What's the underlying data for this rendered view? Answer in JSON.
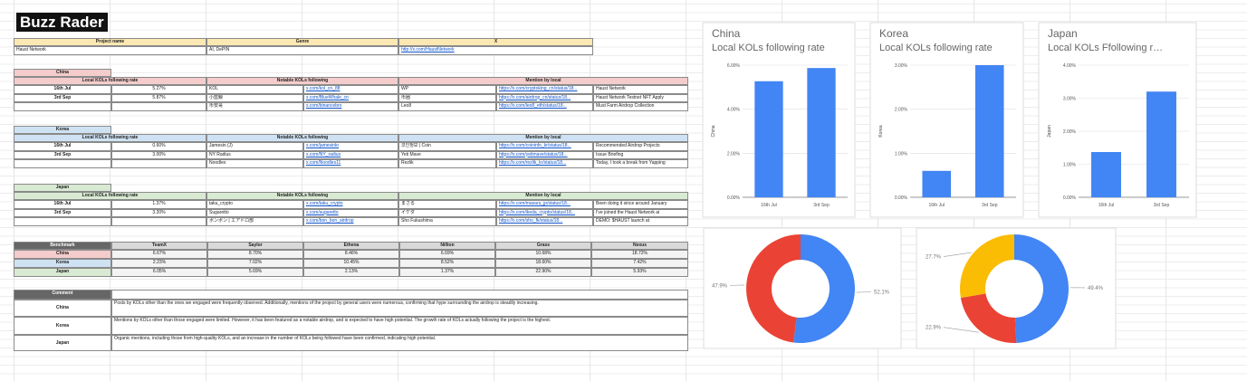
{
  "title": "Buzz Rader",
  "project": {
    "header": [
      "Project name",
      "Genre",
      "X"
    ],
    "rows": [
      [
        "Haust Network",
        "AI, DePIN",
        "http://x.com/HaustNetwork"
      ]
    ]
  },
  "regions": [
    {
      "name": "China",
      "color": "#f4cccc",
      "header": [
        "Local KOLs following rate",
        "Notable KOLs following",
        "Mention by local"
      ],
      "rows": [
        [
          "16th Jul",
          "5.27%",
          "KOL",
          "x.com/kol_cn_88",
          "WP",
          "https://x.com/cryptoking_cn/status/18...",
          "Haust Network"
        ],
        [
          "3rd Sep",
          "5.87%",
          "小蓝鲸",
          "x.com/BlueWhale_cn",
          "币圈",
          "https://x.com/airdrop_cn/status/18...",
          "Haust Network Testnet NFT Apply"
        ],
        [
          null,
          null,
          "币安哥",
          "x.com/binancebro",
          "Leo8",
          "https://x.com/leo8_eth/status/18...",
          "Must Farm Airdrop Collection"
        ]
      ]
    },
    {
      "name": "Korea",
      "color": "#cfe2f3",
      "header": [
        "Local KOLs following rate",
        "Notable KOLs following",
        "Mention by local"
      ],
      "rows": [
        [
          "16th Jul",
          "0.60%",
          "Jamesin (J)",
          "x.com/jamesinkr",
          "코인정보 | Coin",
          "https://x.com/coininfo_kr/status/18...",
          "Recommended Airdrop Projects"
        ],
        [
          "3rd Sep",
          "3.00%",
          "NY Radius",
          "x.com/NY_radius",
          "Yeti Mave",
          "https://x.com/yetimave/status/18...",
          "Issue Briefing"
        ],
        [
          null,
          null,
          "Noodles",
          "x.com/Noodles11",
          "Rezlik",
          "https://x.com/rezlik_kr/status/18...",
          "Today, I took a break from Yapping"
        ]
      ]
    },
    {
      "name": "Japan",
      "color": "#d9ead3",
      "header": [
        "Local KOLs following rate",
        "Notable KOLs following",
        "Mention by local"
      ],
      "rows": [
        [
          "16th Jul",
          "1.37%",
          "taku_crypto",
          "x.com/taku_crypto",
          "まさる",
          "https://x.com/masaru_jp/status/18...",
          "Been doing it since around January"
        ],
        [
          "3rd Sep",
          "3.20%",
          "Sugaretto",
          "x.com/sugaretto",
          "イケダ",
          "https://x.com/ikeda_crypto/status/18...",
          "I've joined the Haust Network ai"
        ],
        [
          null,
          null,
          "ボンボン | エアドロ部",
          "x.com/bon_bon_airdrop",
          "Sho Fukushima",
          "https://x.com/sho_fk/status/18...",
          "DEMO: $HAUST launch at"
        ]
      ]
    }
  ],
  "benchmark": {
    "header": [
      "Benchmark",
      "TeamX",
      "Saylor",
      "Ethena",
      "Nillion",
      "Grass",
      "Nexus"
    ],
    "rows": [
      [
        "China",
        "6.67%",
        "8.70%",
        "8.46%",
        "6.69%",
        "10.68%",
        "18.72%"
      ],
      [
        "Korea",
        "2.23%",
        "7.02%",
        "10.45%",
        "8.52%",
        "18.60%",
        "7.42%"
      ],
      [
        "Japan",
        "6.05%",
        "5.69%",
        "2.13%",
        "1.37%",
        "22.90%",
        "5.93%"
      ]
    ]
  },
  "comment": {
    "header": "Comment",
    "rows": [
      [
        "China",
        "Posts by KOLs other than the ones we engaged were frequently observed. Additionally, mentions of the project by general users were numerous, confirming that hype surrounding the airdrop is steadily increasing."
      ],
      [
        "Korea",
        "Mentions by KOLs other than those engaged were limited. However, it has been featured as a notable airdrop, and is expected to have high potential. The growth rate of KOLs actually following the project is the highest."
      ],
      [
        "Japan",
        "Organic mentions, including those from high-quality KOLs, and an increase in the number of KOLs being followed have been confirmed, indicating high potential."
      ]
    ]
  },
  "chart_data": [
    {
      "type": "bar",
      "title": "China",
      "subtitle": "Local KOLs following rate",
      "y_label": "China",
      "categories": [
        "16th Jul",
        "3rd Sep"
      ],
      "values": [
        5.27,
        5.87
      ],
      "color": "#4285f4",
      "ylim": [
        0,
        6
      ],
      "yticks": [
        {
          "value": 0,
          "label": "0.00%"
        },
        {
          "value": 2,
          "label": "2.00%"
        },
        {
          "value": 4,
          "label": "4.00%"
        },
        {
          "value": 6,
          "label": "6.00%"
        }
      ],
      "grid": true
    },
    {
      "type": "bar",
      "title": "Korea",
      "subtitle": "Local KOLs following rate",
      "y_label": "Korea",
      "categories": [
        "16th Jul",
        "3rd Sep"
      ],
      "values": [
        0.6,
        3.0
      ],
      "color": "#4285f4",
      "ylim": [
        0,
        3
      ],
      "yticks": [
        {
          "value": 0,
          "label": "0.00%"
        },
        {
          "value": 1,
          "label": "1.00%"
        },
        {
          "value": 2,
          "label": "2.00%"
        },
        {
          "value": 3,
          "label": "3.00%"
        }
      ],
      "grid": true
    },
    {
      "type": "bar",
      "title": "Japan",
      "subtitle": "Local KOLs Ffollowing r…",
      "y_label": "Japan",
      "categories": [
        "16th Jul",
        "3rd Sep"
      ],
      "values": [
        1.37,
        3.2
      ],
      "color": "#4285f4",
      "ylim": [
        0,
        4
      ],
      "yticks": [
        {
          "value": 0,
          "label": "0.00%"
        },
        {
          "value": 1,
          "label": "1.00%"
        },
        {
          "value": 2,
          "label": "2.00%"
        },
        {
          "value": 3,
          "label": "3.00%"
        },
        {
          "value": 4,
          "label": "4.00%"
        }
      ],
      "grid": true
    },
    {
      "type": "donut",
      "values": [
        52.1,
        47.9
      ],
      "value_labels": [
        "52.1%",
        "47.9%"
      ],
      "colors": [
        "#4285f4",
        "#ea4335"
      ]
    },
    {
      "type": "donut",
      "values": [
        49.4,
        22.9,
        27.7
      ],
      "value_labels": [
        "49.4%",
        "22.9%",
        "27.7%"
      ],
      "colors": [
        "#4285f4",
        "#ea4335",
        "#fbbc04"
      ]
    }
  ]
}
